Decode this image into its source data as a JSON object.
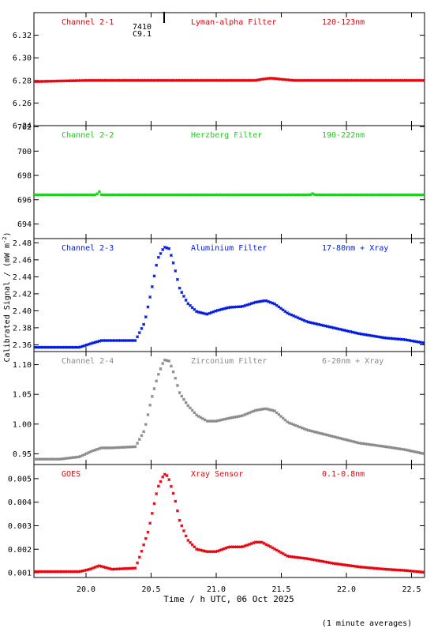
{
  "colors": {
    "frame": "#000000",
    "ch21": "#e8000b",
    "ch22": "#00e000",
    "ch23": "#0019e0",
    "ch24": "#8a8a8a",
    "goes": "#e8000b"
  },
  "y_axis_label": "Calibrated Signal / (mW m",
  "y_axis_label_sup": "-2",
  "y_axis_label_tail": ")",
  "x_axis_label": "Time / h UTC, 06 Oct 2025",
  "averaging_note": "(1 minute averages)",
  "marker_text": [
    "7410",
    "C9.1"
  ],
  "chart_data": [
    {
      "type": "scatter",
      "labels": {
        "channel": "Channel 2-1",
        "filter": "Lyman-alpha Filter",
        "band": "120-123nm"
      },
      "color": "ch21",
      "ylim": [
        6.24,
        6.34
      ],
      "yticks": [
        6.24,
        6.26,
        6.28,
        6.3,
        6.32
      ],
      "ytick_labels": [
        "6.24",
        "6.26",
        "6.28",
        "6.30",
        "6.32"
      ],
      "x": [
        19.6,
        20.0,
        20.5,
        21.0,
        21.3,
        21.35,
        21.42,
        21.5,
        21.6,
        22.0,
        22.6
      ],
      "y": [
        6.279,
        6.28,
        6.28,
        6.28,
        6.28,
        6.281,
        6.282,
        6.281,
        6.28,
        6.28,
        6.28
      ]
    },
    {
      "type": "scatter",
      "labels": {
        "channel": "Channel 2-2",
        "filter": "Herzberg Filter",
        "band": "190-222nm"
      },
      "color": "ch22",
      "ylim": [
        692.8,
        702.1
      ],
      "yticks": [
        694,
        696,
        698,
        700,
        702
      ],
      "ytick_labels": [
        "694",
        "696",
        "698",
        "700",
        "702"
      ],
      "x": [
        19.6,
        20.0,
        20.08,
        20.1,
        20.12,
        20.5,
        21.0,
        21.5,
        21.72,
        21.74,
        21.76,
        22.0,
        22.6
      ],
      "y": [
        696.4,
        696.4,
        696.4,
        696.7,
        696.4,
        696.4,
        696.4,
        696.4,
        696.4,
        696.5,
        696.4,
        696.4,
        696.4
      ]
    },
    {
      "type": "scatter",
      "labels": {
        "channel": "Channel 2-3",
        "filter": "Aluminium Filter",
        "band": "17-80nm + Xray"
      },
      "color": "ch23",
      "ylim": [
        2.352,
        2.485
      ],
      "yticks": [
        2.36,
        2.38,
        2.4,
        2.42,
        2.44,
        2.46,
        2.48
      ],
      "ytick_labels": [
        "2.36",
        "2.38",
        "2.40",
        "2.42",
        "2.44",
        "2.46",
        "2.48"
      ],
      "x": [
        19.6,
        19.8,
        19.95,
        20.05,
        20.12,
        20.2,
        20.38,
        20.45,
        20.5,
        20.55,
        20.6,
        20.64,
        20.68,
        20.72,
        20.78,
        20.85,
        20.93,
        21.0,
        21.1,
        21.2,
        21.3,
        21.38,
        21.45,
        21.55,
        21.7,
        21.9,
        22.1,
        22.3,
        22.45,
        22.6
      ],
      "y": [
        2.357,
        2.357,
        2.357,
        2.362,
        2.365,
        2.365,
        2.365,
        2.386,
        2.422,
        2.461,
        2.475,
        2.473,
        2.451,
        2.426,
        2.409,
        2.399,
        2.396,
        2.4,
        2.404,
        2.405,
        2.41,
        2.412,
        2.408,
        2.397,
        2.387,
        2.38,
        2.373,
        2.368,
        2.366,
        2.362
      ]
    },
    {
      "type": "scatter",
      "labels": {
        "channel": "Channel 2-4",
        "filter": "Zirconium Filter",
        "band": "6-20nm + Xray"
      },
      "color": "ch24",
      "ylim": [
        0.932,
        1.122
      ],
      "yticks": [
        0.95,
        1.0,
        1.05,
        1.1
      ],
      "ytick_labels": [
        "0.95",
        "1.00",
        "1.05",
        "1.10"
      ],
      "x": [
        19.6,
        19.8,
        19.95,
        20.05,
        20.12,
        20.2,
        20.38,
        20.45,
        20.5,
        20.55,
        20.6,
        20.64,
        20.68,
        20.72,
        20.78,
        20.85,
        20.93,
        21.0,
        21.1,
        21.2,
        21.3,
        21.38,
        21.45,
        21.55,
        21.7,
        21.9,
        22.1,
        22.3,
        22.45,
        22.6
      ],
      "y": [
        0.941,
        0.941,
        0.945,
        0.955,
        0.96,
        0.96,
        0.962,
        0.99,
        1.04,
        1.08,
        1.108,
        1.106,
        1.082,
        1.052,
        1.032,
        1.015,
        1.005,
        1.005,
        1.01,
        1.014,
        1.023,
        1.026,
        1.022,
        1.003,
        0.99,
        0.979,
        0.968,
        0.962,
        0.957,
        0.95
      ]
    },
    {
      "type": "scatter",
      "labels": {
        "channel": "GOES",
        "filter": "Xray Sensor",
        "band": "0.1-0.8nm"
      },
      "color": "goes",
      "ylim": [
        0.0008,
        0.0056
      ],
      "yticks": [
        0.001,
        0.002,
        0.003,
        0.004,
        0.005
      ],
      "ytick_labels": [
        "0.001",
        "0.002",
        "0.003",
        "0.004",
        "0.005"
      ],
      "x": [
        19.6,
        19.8,
        19.95,
        20.03,
        20.1,
        20.2,
        20.38,
        20.42,
        20.48,
        20.55,
        20.6,
        20.63,
        20.68,
        20.72,
        20.78,
        20.85,
        20.93,
        21.0,
        21.1,
        21.2,
        21.3,
        21.35,
        21.42,
        21.55,
        21.7,
        21.9,
        22.1,
        22.3,
        22.45,
        22.6
      ],
      "y": [
        0.00105,
        0.00105,
        0.00105,
        0.00115,
        0.0013,
        0.00115,
        0.0012,
        0.0018,
        0.0028,
        0.0046,
        0.0052,
        0.0051,
        0.0042,
        0.0032,
        0.0024,
        0.002,
        0.0019,
        0.0019,
        0.0021,
        0.0021,
        0.0023,
        0.0023,
        0.0021,
        0.0017,
        0.0016,
        0.0014,
        0.00125,
        0.00115,
        0.0011,
        0.00102
      ]
    }
  ],
  "x_axis": {
    "xlim": [
      19.6,
      22.6
    ],
    "ticks": [
      20.0,
      20.5,
      21.0,
      21.5,
      22.0,
      22.5
    ],
    "tick_labels": [
      "20.0",
      "20.5",
      "21.0",
      "21.5",
      "22.0",
      "22.5"
    ]
  }
}
